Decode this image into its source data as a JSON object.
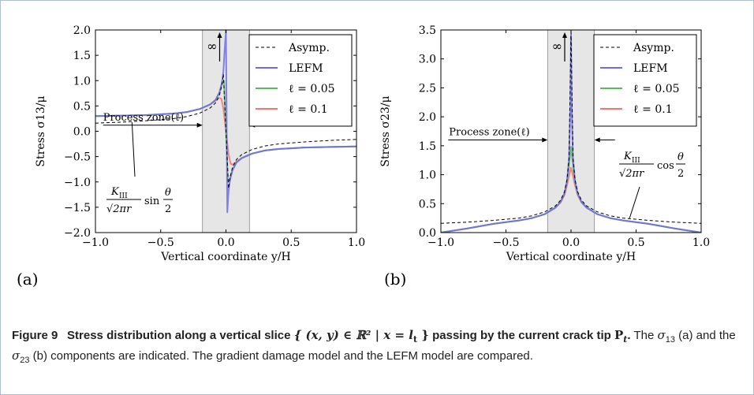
{
  "caption": {
    "fig_label": "Figure 9",
    "title_start": "Stress distribution along a vertical slice",
    "set_expr": "{ (x, y) ∈ ℝ² | x = l",
    "set_sub": "t",
    "set_end": " }",
    "title_mid": "passing by the current crack tip",
    "tip_P": "P",
    "tip_sub": "t",
    "title_end": ".",
    "rest_1": " The ",
    "sigma13": "σ",
    "sub13": "13",
    "rest_2": " (a) and the ",
    "sigma23": "σ",
    "sub23": "23",
    "rest_3": " (b) components are indicated. The gradient damage model and the LEFM model are compared."
  },
  "chart_data": [
    {
      "type": "line",
      "panel_label": "(a)",
      "xlabel": "Vertical coordinate y/H",
      "ylabel": "Stress σ13/μ",
      "xlim": [
        -1.0,
        1.0
      ],
      "ylim": [
        -2.0,
        2.0
      ],
      "xticks": [
        "−1.0",
        "−0.5",
        "0.0",
        "0.5",
        "1.0"
      ],
      "yticks": [
        "−2.0",
        "−1.5",
        "−1.0",
        "−0.5",
        "0.0",
        "0.5",
        "1.0",
        "1.5",
        "2.0"
      ],
      "ytick_values": [
        -2.0,
        -1.5,
        -1.0,
        -0.5,
        0.0,
        0.5,
        1.0,
        1.5,
        2.0
      ],
      "xtick_values": [
        -1.0,
        -0.5,
        0.0,
        0.5,
        1.0
      ],
      "process_zone": [
        -0.18,
        0.18
      ],
      "infinity_label": "∞",
      "process_zone_label": "Process zone(ℓ)",
      "formula_label": "K_III/√(2πr) sin θ/2",
      "legend": {
        "placement": "top-right",
        "entries": [
          {
            "label": "Asymp.",
            "color": "#000000",
            "dash": true
          },
          {
            "label": "LEFM",
            "color": "#6d6de8"
          },
          {
            "label": "ℓ = 0.05",
            "color": "#5cb85c"
          },
          {
            "label": "ℓ = 0.1",
            "color": "#ee7777"
          }
        ]
      },
      "series": [
        {
          "name": "Asymp.",
          "color": "#000000",
          "dashed": true,
          "x": [
            -1.0,
            -0.8,
            -0.6,
            -0.4,
            -0.3,
            -0.2,
            -0.12,
            -0.08,
            -0.05,
            -0.03,
            -0.02,
            0.02,
            0.03,
            0.05,
            0.08,
            0.12,
            0.2,
            0.3,
            0.4,
            0.6,
            0.8,
            1.0
          ],
          "y": [
            0.16,
            0.18,
            0.21,
            0.25,
            0.29,
            0.36,
            0.46,
            0.56,
            0.71,
            0.92,
            1.13,
            -1.13,
            -0.92,
            -0.71,
            -0.56,
            -0.46,
            -0.36,
            -0.29,
            -0.25,
            -0.21,
            -0.18,
            -0.16
          ]
        },
        {
          "name": "LEFM",
          "color": "#6d6de8",
          "x": [
            -1.0,
            -0.8,
            -0.6,
            -0.4,
            -0.3,
            -0.2,
            -0.12,
            -0.08,
            -0.05,
            -0.03,
            -0.02,
            -0.01,
            0.0,
            0.01,
            0.02,
            0.03,
            0.05,
            0.08,
            0.12,
            0.2,
            0.3,
            0.4,
            0.6,
            0.8,
            1.0
          ],
          "y": [
            0.3,
            0.31,
            0.32,
            0.35,
            0.38,
            0.44,
            0.53,
            0.62,
            0.77,
            0.97,
            1.18,
            1.6,
            2.0,
            -1.6,
            -1.18,
            -0.97,
            -0.77,
            -0.62,
            -0.53,
            -0.44,
            -0.38,
            -0.35,
            -0.32,
            -0.31,
            -0.3
          ]
        },
        {
          "name": "ℓ = 0.05",
          "color": "#5cb85c",
          "x": [
            -1.0,
            -0.8,
            -0.6,
            -0.4,
            -0.3,
            -0.2,
            -0.12,
            -0.08,
            -0.05,
            -0.03,
            -0.015,
            0.0,
            0.015,
            0.03,
            0.05,
            0.08,
            0.12,
            0.2,
            0.3,
            0.4,
            0.6,
            0.8,
            1.0
          ],
          "y": [
            0.3,
            0.31,
            0.32,
            0.35,
            0.38,
            0.44,
            0.53,
            0.62,
            0.76,
            0.94,
            1.0,
            0.0,
            -1.0,
            -0.94,
            -0.76,
            -0.62,
            -0.53,
            -0.44,
            -0.38,
            -0.35,
            -0.32,
            -0.31,
            -0.3
          ]
        },
        {
          "name": "ℓ = 0.1",
          "color": "#ee7777",
          "x": [
            -1.0,
            -0.8,
            -0.6,
            -0.4,
            -0.3,
            -0.2,
            -0.12,
            -0.08,
            -0.05,
            -0.035,
            -0.02,
            0.0,
            0.02,
            0.035,
            0.05,
            0.08,
            0.12,
            0.2,
            0.3,
            0.4,
            0.6,
            0.8,
            1.0
          ],
          "y": [
            0.3,
            0.31,
            0.32,
            0.35,
            0.38,
            0.44,
            0.53,
            0.6,
            0.66,
            0.64,
            0.45,
            0.0,
            -0.45,
            -0.64,
            -0.66,
            -0.6,
            -0.53,
            -0.44,
            -0.38,
            -0.35,
            -0.32,
            -0.31,
            -0.3
          ]
        }
      ]
    },
    {
      "type": "line",
      "panel_label": "(b)",
      "xlabel": "Vertical coordinate y/H",
      "ylabel": "Stress σ23/μ",
      "xlim": [
        -1.0,
        1.0
      ],
      "ylim": [
        0.0,
        3.5
      ],
      "xticks": [
        "−1.0",
        "−0.5",
        "0.0",
        "0.5",
        "1.0"
      ],
      "yticks": [
        "0.0",
        "0.5",
        "1.0",
        "1.5",
        "2.0",
        "2.5",
        "3.0",
        "3.5"
      ],
      "ytick_values": [
        0.0,
        0.5,
        1.0,
        1.5,
        2.0,
        2.5,
        3.0,
        3.5
      ],
      "xtick_values": [
        -1.0,
        -0.5,
        0.0,
        0.5,
        1.0
      ],
      "process_zone": [
        -0.18,
        0.18
      ],
      "infinity_label": "∞",
      "process_zone_label": "Process zone(ℓ)",
      "formula_label": "K_III/√(2πr) cos θ/2",
      "legend": {
        "placement": "top-right",
        "entries": [
          {
            "label": "Asymp.",
            "color": "#000000",
            "dash": true
          },
          {
            "label": "LEFM",
            "color": "#6d6de8"
          },
          {
            "label": "ℓ = 0.05",
            "color": "#5cb85c"
          },
          {
            "label": "ℓ = 0.1",
            "color": "#ee7777"
          }
        ]
      },
      "series": [
        {
          "name": "Asymp.",
          "color": "#000000",
          "dashed": true,
          "x": [
            -1.0,
            -0.8,
            -0.6,
            -0.4,
            -0.3,
            -0.2,
            -0.12,
            -0.08,
            -0.05,
            -0.03,
            -0.015,
            0.0,
            0.015,
            0.03,
            0.05,
            0.08,
            0.12,
            0.2,
            0.3,
            0.4,
            0.6,
            0.8,
            1.0
          ],
          "y": [
            0.16,
            0.18,
            0.21,
            0.25,
            0.29,
            0.36,
            0.46,
            0.56,
            0.71,
            0.92,
            1.3,
            3.5,
            1.3,
            0.92,
            0.71,
            0.56,
            0.46,
            0.36,
            0.29,
            0.25,
            0.21,
            0.18,
            0.16
          ]
        },
        {
          "name": "LEFM",
          "color": "#6d6de8",
          "x": [
            -1.0,
            -0.8,
            -0.6,
            -0.4,
            -0.3,
            -0.2,
            -0.12,
            -0.08,
            -0.05,
            -0.03,
            -0.015,
            -0.005,
            0.0,
            0.005,
            0.015,
            0.03,
            0.05,
            0.08,
            0.12,
            0.2,
            0.3,
            0.4,
            0.6,
            0.8,
            1.0
          ],
          "y": [
            0.0,
            0.07,
            0.15,
            0.21,
            0.25,
            0.32,
            0.43,
            0.53,
            0.68,
            0.9,
            1.28,
            2.2,
            3.4,
            2.2,
            1.28,
            0.9,
            0.68,
            0.53,
            0.43,
            0.32,
            0.25,
            0.21,
            0.15,
            0.07,
            0.0
          ]
        },
        {
          "name": "ℓ = 0.05",
          "color": "#5cb85c",
          "x": [
            -1.0,
            -0.8,
            -0.6,
            -0.4,
            -0.3,
            -0.2,
            -0.12,
            -0.08,
            -0.05,
            -0.03,
            -0.015,
            0.0,
            0.015,
            0.03,
            0.05,
            0.08,
            0.12,
            0.2,
            0.3,
            0.4,
            0.6,
            0.8,
            1.0
          ],
          "y": [
            0.0,
            0.07,
            0.15,
            0.21,
            0.25,
            0.32,
            0.43,
            0.53,
            0.68,
            0.88,
            1.15,
            1.48,
            1.15,
            0.88,
            0.68,
            0.53,
            0.43,
            0.32,
            0.25,
            0.21,
            0.15,
            0.07,
            0.0
          ]
        },
        {
          "name": "ℓ = 0.1",
          "color": "#ee7777",
          "x": [
            -1.0,
            -0.8,
            -0.6,
            -0.4,
            -0.3,
            -0.2,
            -0.12,
            -0.08,
            -0.05,
            -0.03,
            -0.015,
            0.0,
            0.015,
            0.03,
            0.05,
            0.08,
            0.12,
            0.2,
            0.3,
            0.4,
            0.6,
            0.8,
            1.0
          ],
          "y": [
            0.0,
            0.07,
            0.15,
            0.21,
            0.25,
            0.32,
            0.43,
            0.52,
            0.65,
            0.82,
            0.98,
            1.12,
            0.98,
            0.82,
            0.65,
            0.52,
            0.43,
            0.32,
            0.25,
            0.21,
            0.15,
            0.07,
            0.0
          ]
        }
      ]
    }
  ]
}
